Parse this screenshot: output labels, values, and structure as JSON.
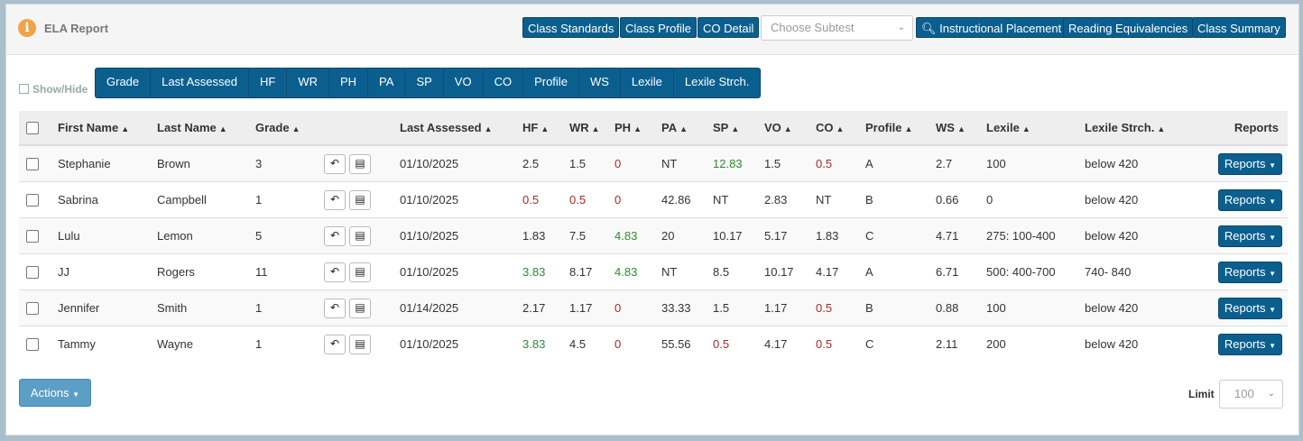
{
  "header": {
    "title": "ELA Report",
    "buttons": [
      "Class Standards",
      "Class Profile",
      "CO Detail"
    ],
    "subtest_placeholder": "Choose Subtest",
    "buttons_right": [
      "Instructional Placement",
      "Reading Equivalencies",
      "Class Summary"
    ]
  },
  "showhide_label": "Show/Hide",
  "column_toggles": [
    "Grade",
    "Last Assessed",
    "HF",
    "WR",
    "PH",
    "PA",
    "SP",
    "VO",
    "CO",
    "Profile",
    "WS",
    "Lexile",
    "Lexile Strch."
  ],
  "table": {
    "headers": [
      "First Name",
      "Last Name",
      "Grade",
      "Last Assessed",
      "HF",
      "WR",
      "PH",
      "PA",
      "SP",
      "VO",
      "CO",
      "Profile",
      "WS",
      "Lexile",
      "Lexile Strch.",
      "Reports"
    ],
    "rows": [
      {
        "first": "Stephanie",
        "last": "Brown",
        "grade": "3",
        "assessed": "01/10/2025",
        "hf": "2.5",
        "wr": "1.5",
        "ph": "0",
        "pa": "NT",
        "sp": "12.83",
        "vo": "1.5",
        "co": "0.5",
        "profile": "A",
        "ws": "2.7",
        "lexile": "100",
        "stretch": "below 420",
        "reports": "Reports"
      },
      {
        "first": "Sabrina",
        "last": "Campbell",
        "grade": "1",
        "assessed": "01/10/2025",
        "hf": "0.5",
        "wr": "0.5",
        "ph": "0",
        "pa": "42.86",
        "sp": "NT",
        "vo": "2.83",
        "co": "NT",
        "profile": "B",
        "ws": "0.66",
        "lexile": "0",
        "stretch": "below 420",
        "reports": "Reports"
      },
      {
        "first": "Lulu",
        "last": "Lemon",
        "grade": "5",
        "assessed": "01/10/2025",
        "hf": "1.83",
        "wr": "7.5",
        "ph": "4.83",
        "pa": "20",
        "sp": "10.17",
        "vo": "5.17",
        "co": "1.83",
        "profile": "C",
        "ws": "4.71",
        "lexile": "275: 100-400",
        "stretch": "below 420",
        "reports": "Reports"
      },
      {
        "first": "JJ",
        "last": "Rogers",
        "grade": "11",
        "assessed": "01/10/2025",
        "hf": "3.83",
        "wr": "8.17",
        "ph": "4.83",
        "pa": "NT",
        "sp": "8.5",
        "vo": "10.17",
        "co": "4.17",
        "profile": "A",
        "ws": "6.71",
        "lexile": "500: 400-700",
        "stretch": "740- 840",
        "reports": "Reports"
      },
      {
        "first": "Jennifer",
        "last": "Smith",
        "grade": "1",
        "assessed": "01/14/2025",
        "hf": "2.17",
        "wr": "1.17",
        "ph": "0",
        "pa": "33.33",
        "sp": "1.5",
        "vo": "1.17",
        "co": "0.5",
        "profile": "B",
        "ws": "0.88",
        "lexile": "100",
        "stretch": "below 420",
        "reports": "Reports"
      },
      {
        "first": "Tammy",
        "last": "Wayne",
        "grade": "1",
        "assessed": "01/10/2025",
        "hf": "3.83",
        "wr": "4.5",
        "ph": "0",
        "pa": "55.56",
        "sp": "0.5",
        "vo": "4.17",
        "co": "0.5",
        "profile": "C",
        "ws": "2.11",
        "lexile": "200",
        "stretch": "below 420",
        "reports": "Reports"
      }
    ]
  },
  "footer": {
    "actions_label": "Actions",
    "limit_label": "Limit",
    "limit_value": "100"
  },
  "colors": {
    "primary": "#0b5f8f",
    "low": "#a52a2a",
    "high": "#2e8b2e",
    "accent": "#f0a34b"
  }
}
